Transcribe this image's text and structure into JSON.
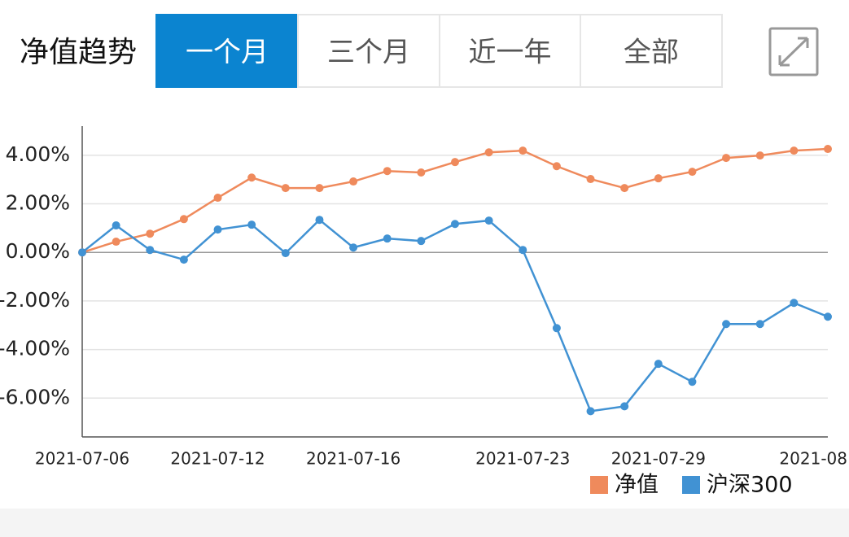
{
  "header": {
    "title": "净值趋势",
    "tabs": [
      "一个月",
      "三个月",
      "近一年",
      "全部"
    ],
    "active_tab": 0
  },
  "chart_data": {
    "type": "line",
    "categories": [
      "2021-07-06",
      null,
      null,
      null,
      "2021-07-12",
      null,
      null,
      null,
      "2021-07-16",
      null,
      null,
      null,
      null,
      "2021-07-23",
      null,
      null,
      null,
      "2021-07-29",
      null,
      null,
      null,
      null,
      "2021-08"
    ],
    "series": [
      {
        "name": "净值",
        "color": "#ef8a5c",
        "values": [
          0,
          0.44,
          0.77,
          1.37,
          2.25,
          3.08,
          2.65,
          2.65,
          2.92,
          3.35,
          3.29,
          3.72,
          4.12,
          4.19,
          3.55,
          3.02,
          2.65,
          3.05,
          3.32,
          3.89,
          3.99,
          4.19,
          4.26
        ]
      },
      {
        "name": "沪深300",
        "color": "#4192d3",
        "values": [
          0,
          1.11,
          0.1,
          -0.3,
          0.94,
          1.14,
          -0.03,
          1.34,
          0.2,
          0.57,
          0.47,
          1.17,
          1.31,
          0.1,
          -3.12,
          -6.54,
          -6.34,
          -4.59,
          -5.33,
          -2.95,
          -2.95,
          -2.08,
          -2.65
        ]
      }
    ],
    "ylim": [
      -7.6,
      5.2
    ],
    "yticks": [
      {
        "value": 4,
        "label": "4.00%"
      },
      {
        "value": 2,
        "label": "2.00%"
      },
      {
        "value": 0,
        "label": "0.00%"
      },
      {
        "value": -2,
        "label": "-2.00%"
      },
      {
        "value": -4,
        "label": "-4.00%"
      },
      {
        "value": -6,
        "label": "-6.00%"
      }
    ],
    "grid": true
  }
}
